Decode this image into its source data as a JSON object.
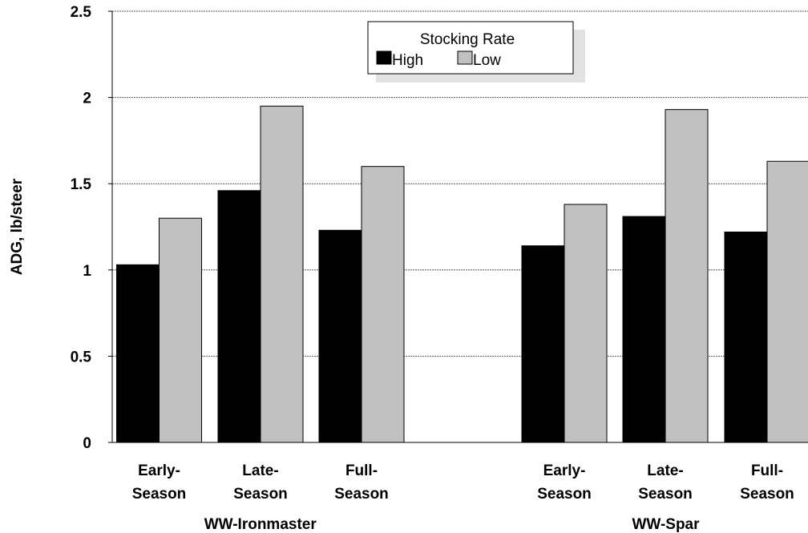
{
  "chart_data": {
    "type": "bar",
    "ylabel": "ADG, lb/steer",
    "ylim": [
      0,
      2.5
    ],
    "yticks": [
      "0",
      "0.5",
      "1",
      "1.5",
      "2",
      "2.5"
    ],
    "grid": true,
    "legend": {
      "title": "Stocking Rate",
      "placement": "top-center"
    },
    "groups": [
      {
        "name": "WW-Ironmaster",
        "categories": [
          "Early-Season",
          "Late-Season",
          "Full-Season"
        ]
      },
      {
        "name": "WW-Spar",
        "categories": [
          "Early-Season",
          "Late-Season",
          "Full-Season"
        ]
      }
    ],
    "category_lines": [
      [
        "Early-",
        "Season"
      ],
      [
        "Late-",
        "Season"
      ],
      [
        "Full-",
        "Season"
      ],
      [
        "Early-",
        "Season"
      ],
      [
        "Late-",
        "Season"
      ],
      [
        "Full-",
        "Season"
      ]
    ],
    "series": [
      {
        "name": "High",
        "color": "#000000",
        "values": [
          1.03,
          1.46,
          1.23,
          1.14,
          1.31,
          1.22
        ]
      },
      {
        "name": "Low",
        "color": "#c0c0c0",
        "values": [
          1.3,
          1.95,
          1.6,
          1.38,
          1.93,
          1.63
        ]
      }
    ]
  }
}
